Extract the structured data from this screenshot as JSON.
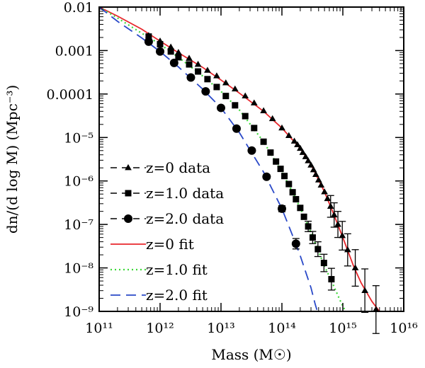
{
  "chart_data": {
    "type": "scatter",
    "title": "",
    "xlabel": "Mass (M☉)",
    "ylabel": "dn/(d log M) (Mpc⁻³)",
    "xscale": "log",
    "yscale": "log",
    "xlim": [
      100000000000.0,
      1e+16
    ],
    "ylim": [
      1e-09,
      0.01
    ],
    "grid": false,
    "legend_position": "lower-left",
    "x_ticks": [
      {
        "value": 100000000000.0,
        "label": "10¹¹"
      },
      {
        "value": 1000000000000.0,
        "label": "10¹²"
      },
      {
        "value": 10000000000000.0,
        "label": "10¹³"
      },
      {
        "value": 100000000000000.0,
        "label": "10¹⁴"
      },
      {
        "value": 1000000000000000.0,
        "label": "10¹⁵"
      },
      {
        "value": 1e+16,
        "label": "10¹⁶"
      }
    ],
    "y_ticks": [
      {
        "value": 0.01,
        "label": "0.01"
      },
      {
        "value": 0.001,
        "label": "0.001"
      },
      {
        "value": 0.0001,
        "label": "0.0001"
      },
      {
        "value": 1e-05,
        "label": "10⁻⁵"
      },
      {
        "value": 1e-06,
        "label": "10⁻⁶"
      },
      {
        "value": 1e-07,
        "label": "10⁻⁷"
      },
      {
        "value": 1e-08,
        "label": "10⁻⁸"
      },
      {
        "value": 1e-09,
        "label": "10⁻⁹"
      }
    ],
    "data_series": [
      {
        "name": "z=0 data",
        "marker": "triangle",
        "color": "#000000",
        "points": [
          [
            650000000000.0,
            0.0022
          ],
          [
            1000000000000.0,
            0.00165
          ],
          [
            1500000000000.0,
            0.0012
          ],
          [
            2000000000000.0,
            0.0009
          ],
          [
            3000000000000.0,
            0.00066
          ],
          [
            4200000000000.0,
            0.00048
          ],
          [
            6000000000000.0,
            0.00035
          ],
          [
            8500000000000.0,
            0.00026
          ],
          [
            12000000000000.0,
            0.00018
          ],
          [
            17000000000000.0,
            0.00013
          ],
          [
            25000000000000.0,
            9e-05
          ],
          [
            35000000000000.0,
            6.2e-05
          ],
          [
            50000000000000.0,
            4.1e-05
          ],
          [
            70000000000000.0,
            2.7e-05
          ],
          [
            100000000000000.0,
            1.65e-05
          ],
          [
            130000000000000.0,
            1.1e-05
          ],
          [
            160000000000000.0,
            8.2e-06
          ],
          [
            180000000000000.0,
            6.8e-06
          ],
          [
            200000000000000.0,
            5.6e-06
          ],
          [
            220000000000000.0,
            4.5e-06
          ],
          [
            245000000000000.0,
            3.6e-06
          ],
          [
            270000000000000.0,
            2.9e-06
          ],
          [
            300000000000000.0,
            2.3e-06
          ],
          [
            330000000000000.0,
            1.8e-06
          ],
          [
            360000000000000.0,
            1.4e-06
          ],
          [
            400000000000000.0,
            1.05e-06
          ],
          [
            440000000000000.0,
            8e-07
          ],
          [
            500000000000000.0,
            5.6e-07
          ],
          [
            560000000000000.0,
            3.9e-07
          ],
          [
            630000000000000.0,
            2.6e-07
          ],
          [
            720000000000000.0,
            1.65e-07
          ],
          [
            830000000000000.0,
            1e-07
          ],
          [
            980000000000000.0,
            5.5e-08
          ],
          [
            1200000000000000.0,
            2.6e-08
          ],
          [
            1600000000000000.0,
            1e-08
          ],
          [
            2300000000000000.0,
            3e-09
          ],
          [
            3500000000000000.0,
            1.1e-09
          ]
        ],
        "errors": [
          [
            630000000000000.0,
            0.25
          ],
          [
            720000000000000.0,
            0.28
          ],
          [
            830000000000000.0,
            0.3
          ],
          [
            980000000000000.0,
            0.33
          ],
          [
            1200000000000000.0,
            0.37
          ],
          [
            1600000000000000.0,
            0.42
          ],
          [
            2300000000000000.0,
            0.5
          ],
          [
            3500000000000000.0,
            0.55
          ]
        ]
      },
      {
        "name": "z=1.0 data",
        "marker": "square",
        "color": "#000000",
        "points": [
          [
            650000000000.0,
            0.0021
          ],
          [
            1000000000000.0,
            0.0014
          ],
          [
            1500000000000.0,
            0.00095
          ],
          [
            2000000000000.0,
            0.0007
          ],
          [
            3000000000000.0,
            0.00048
          ],
          [
            4200000000000.0,
            0.00033
          ],
          [
            6000000000000.0,
            0.00022
          ],
          [
            8500000000000.0,
            0.000145
          ],
          [
            12000000000000.0,
            9e-05
          ],
          [
            17000000000000.0,
            5.5e-05
          ],
          [
            25000000000000.0,
            3.1e-05
          ],
          [
            35000000000000.0,
            1.65e-05
          ],
          [
            50000000000000.0,
            8e-06
          ],
          [
            65000000000000.0,
            4.5e-06
          ],
          [
            80000000000000.0,
            2.8e-06
          ],
          [
            95000000000000.0,
            1.9e-06
          ],
          [
            110000000000000.0,
            1.3e-06
          ],
          [
            130000000000000.0,
            8.5e-07
          ],
          [
            150000000000000.0,
            5.5e-07
          ],
          [
            170000000000000.0,
            3.8e-07
          ],
          [
            200000000000000.0,
            2.4e-07
          ],
          [
            230000000000000.0,
            1.5e-07
          ],
          [
            270000000000000.0,
            9e-08
          ],
          [
            320000000000000.0,
            5e-08
          ],
          [
            390000000000000.0,
            2.7e-08
          ],
          [
            490000000000000.0,
            1.3e-08
          ],
          [
            650000000000000.0,
            5.5e-09
          ]
        ],
        "errors": [
          [
            270000000000000.0,
            0.12
          ],
          [
            320000000000000.0,
            0.14
          ],
          [
            390000000000000.0,
            0.17
          ],
          [
            490000000000000.0,
            0.2
          ],
          [
            650000000000000.0,
            0.25
          ]
        ]
      },
      {
        "name": "z=2.0 data",
        "marker": "circle",
        "color": "#000000",
        "points": [
          [
            650000000000.0,
            0.0016
          ],
          [
            1000000000000.0,
            0.00095
          ],
          [
            1700000000000.0,
            0.00052
          ],
          [
            3200000000000.0,
            0.00024
          ],
          [
            5600000000000.0,
            0.000115
          ],
          [
            10000000000000.0,
            4.8e-05
          ],
          [
            18000000000000.0,
            1.6e-05
          ],
          [
            32000000000000.0,
            5e-06
          ],
          [
            56000000000000.0,
            1.25e-06
          ],
          [
            100000000000000.0,
            2.3e-07
          ],
          [
            170000000000000.0,
            3.6e-08
          ]
        ],
        "errors": [
          [
            56000000000000.0,
            0.05
          ],
          [
            100000000000000.0,
            0.07
          ],
          [
            170000000000000.0,
            0.12
          ]
        ]
      }
    ],
    "fit_series": [
      {
        "name": "z=0 fit",
        "style": "solid",
        "color": "#e8272c",
        "points": [
          [
            100000000000.0,
            0.01
          ],
          [
            200000000000.0,
            0.0062
          ],
          [
            500000000000.0,
            0.0031
          ],
          [
            1000000000000.0,
            0.00165
          ],
          [
            2000000000000.0,
            0.00089
          ],
          [
            5000000000000.0,
            0.00041
          ],
          [
            10000000000000.0,
            0.00021
          ],
          [
            20000000000000.0,
            0.000105
          ],
          [
            50000000000000.0,
            4e-05
          ],
          [
            100000000000000.0,
            1.65e-05
          ],
          [
            200000000000000.0,
            5.6e-06
          ],
          [
            300000000000000.0,
            2.4e-06
          ],
          [
            500000000000000.0,
            5.6e-07
          ],
          [
            700000000000000.0,
            1.8e-07
          ],
          [
            1000000000000000.0,
            5e-08
          ],
          [
            1500000000000000.0,
            1.1e-08
          ],
          [
            2000000000000000.0,
            4.5e-09
          ],
          [
            3000000000000000.0,
            1.7e-09
          ],
          [
            4500000000000000.0,
            8e-10
          ]
        ]
      },
      {
        "name": "z=1.0 fit",
        "style": "dotted",
        "color": "#3ed93a",
        "points": [
          [
            100000000000.0,
            0.01
          ],
          [
            200000000000.0,
            0.0056
          ],
          [
            500000000000.0,
            0.0025
          ],
          [
            1000000000000.0,
            0.0014
          ],
          [
            2000000000000.0,
            0.0007
          ],
          [
            5000000000000.0,
            0.00026
          ],
          [
            10000000000000.0,
            0.000115
          ],
          [
            20000000000000.0,
            4.3e-05
          ],
          [
            50000000000000.0,
            8e-06
          ],
          [
            100000000000000.0,
            1.6e-06
          ],
          [
            150000000000000.0,
            5.5e-07
          ],
          [
            200000000000000.0,
            2.4e-07
          ],
          [
            300000000000000.0,
            6.5e-08
          ],
          [
            500000000000000.0,
            1.1e-08
          ],
          [
            700000000000000.0,
            4e-09
          ],
          [
            900000000000000.0,
            1.8e-09
          ],
          [
            1200000000000000.0,
            8e-10
          ]
        ]
      },
      {
        "name": "z=2.0 fit",
        "style": "dashed",
        "color": "#2a49c8",
        "points": [
          [
            100000000000.0,
            0.01
          ],
          [
            200000000000.0,
            0.0047
          ],
          [
            500000000000.0,
            0.00195
          ],
          [
            1000000000000.0,
            0.00095
          ],
          [
            2000000000000.0,
            0.00042
          ],
          [
            5000000000000.0,
            0.00013
          ],
          [
            10000000000000.0,
            4.8e-05
          ],
          [
            20000000000000.0,
            1.3e-05
          ],
          [
            50000000000000.0,
            1.6e-06
          ],
          [
            100000000000000.0,
            2.3e-07
          ],
          [
            150000000000000.0,
            5.5e-08
          ],
          [
            200000000000000.0,
            1.9e-08
          ],
          [
            300000000000000.0,
            3.5e-09
          ],
          [
            350000000000000.0,
            1.5e-09
          ],
          [
            400000000000000.0,
            8e-10
          ]
        ]
      }
    ]
  }
}
